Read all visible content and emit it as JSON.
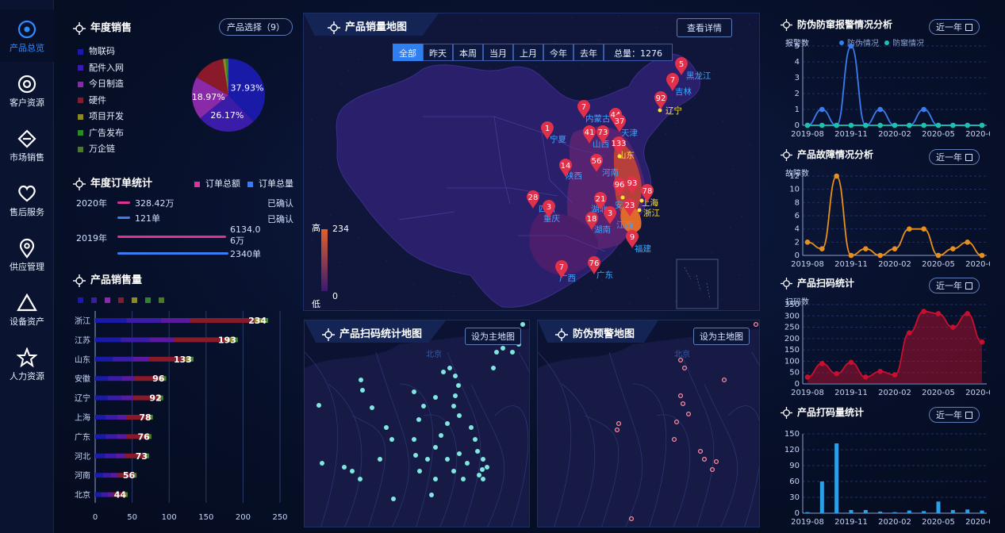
{
  "nav": {
    "items": [
      {
        "label": "产品总览",
        "icon": "target-icon",
        "active": true
      },
      {
        "label": "客户资源",
        "icon": "radio-circle-icon"
      },
      {
        "label": "市场销售",
        "icon": "minus-circle-icon"
      },
      {
        "label": "售后服务",
        "icon": "heart-icon"
      },
      {
        "label": "供应管理",
        "icon": "location-pin-icon"
      },
      {
        "label": "设备资产",
        "icon": "triangle-icon"
      },
      {
        "label": "人力资源",
        "icon": "star-icon"
      }
    ]
  },
  "annual_sales": {
    "title": "年度销售",
    "select_button": "产品选择（9）",
    "legend": [
      {
        "label": "物联码",
        "color": "#1a1aa8"
      },
      {
        "label": "配件入网",
        "color": "#3a1ca8"
      },
      {
        "label": "今日制造",
        "color": "#8a2aa8"
      },
      {
        "label": "硬件",
        "color": "#8a1a2a"
      },
      {
        "label": "项目开发",
        "color": "#8a8a2a"
      },
      {
        "label": "广告发布",
        "color": "#2a8a2a"
      },
      {
        "label": "万企链",
        "color": "#4a7a2a"
      }
    ],
    "chart_data": {
      "type": "pie",
      "slices": [
        {
          "label": "37.93%",
          "value": 37.93,
          "color": "#1a1aa8"
        },
        {
          "label": "26.17%",
          "value": 26.17,
          "color": "#3a1ca8"
        },
        {
          "label": "18.97%",
          "value": 18.97,
          "color": "#8a2aa8"
        },
        {
          "label": "",
          "value": 14.5,
          "color": "#8a1a2a"
        },
        {
          "label": "",
          "value": 1.2,
          "color": "#8a8a2a"
        },
        {
          "label": "",
          "value": 0.8,
          "color": "#2a8a2a"
        },
        {
          "label": "",
          "value": 0.43,
          "color": "#4a7a2a"
        }
      ]
    }
  },
  "order_stats": {
    "title": "年度订单统计",
    "legend_amount": "订单总额",
    "legend_count": "订单总量",
    "y2020": "2020年",
    "y2019": "2019年",
    "amount_2020": "328.42万",
    "count_2020": "121单",
    "amount_2019": "6134.06万",
    "count_2019": "2340单",
    "confirmed_1": "已确认",
    "confirmed_2": "已确认"
  },
  "product_sales": {
    "title": "产品销售量",
    "chart_data": {
      "type": "bar",
      "categories": [
        "浙江",
        "江苏",
        "山东",
        "安徽",
        "辽宁",
        "上海",
        "广东",
        "河北",
        "河南",
        "北京"
      ],
      "values": [
        234,
        193,
        133,
        96,
        92,
        78,
        76,
        73,
        56,
        44
      ],
      "xlim": [
        0,
        250
      ],
      "xticks": [
        "0",
        "50",
        "100",
        "150",
        "200",
        "250"
      ]
    }
  },
  "sales_map": {
    "title": "产品销量地图",
    "detail_button": "查看详情",
    "tabs": [
      "全部",
      "昨天",
      "本周",
      "当月",
      "上月",
      "今年",
      "去年"
    ],
    "total": "总量：1276",
    "legend_high": "高",
    "legend_low": "低",
    "legend_max": "234",
    "legend_min": "0",
    "provinces": [
      "黑龙江",
      "吉林",
      "辽宁",
      "内蒙古",
      "天津",
      "山西",
      "山东",
      "宁夏",
      "陕西",
      "河南",
      "四川",
      "重庆",
      "湖北",
      "湖南",
      "江西",
      "上海",
      "浙江",
      "安徽",
      "福建",
      "广西",
      "广东"
    ],
    "pins": [
      "5",
      "7",
      "92",
      "7",
      "44",
      "37",
      "41",
      "73",
      "133",
      "1",
      "14",
      "56",
      "28",
      "3",
      "96",
      "93",
      "78",
      "21",
      "23",
      "18",
      "3",
      "9",
      "7",
      "76"
    ]
  },
  "scan_map": {
    "title": "产品扫码统计地图",
    "set_main_button": "设为主地图",
    "city_label": "北京"
  },
  "warn_map": {
    "title": "防伪预警地图",
    "set_main_button": "设为主地图",
    "city_label": "北京"
  },
  "right": {
    "chart1": {
      "title": "防伪防窜报警情况分析",
      "range_button": "近一年",
      "ylabel": "报警数",
      "legend": [
        "防伪情况",
        "防窜情况"
      ],
      "chart_data": {
        "type": "line",
        "x": [
          "2019-08",
          "2019-09",
          "2019-10",
          "2019-11",
          "2019-12",
          "2020-01",
          "2020-02",
          "2020-03",
          "2020-04",
          "2020-05",
          "2020-06",
          "2020-07",
          "2020-08"
        ],
        "xticks": [
          "2019-08",
          "2019-11",
          "2020-02",
          "2020-05",
          "2020-08"
        ],
        "ylim": [
          0,
          5
        ],
        "yticks": [
          "0",
          "1",
          "2",
          "3",
          "4",
          "5"
        ],
        "series": [
          {
            "name": "防伪情况",
            "color": "#3b7df0",
            "values": [
              0,
              1,
              0,
              5,
              0,
              1,
              0,
              0,
              1,
              0,
              0,
              0,
              0
            ]
          },
          {
            "name": "防窜情况",
            "color": "#18c3b0",
            "values": [
              0,
              0,
              0,
              0,
              0,
              0,
              0,
              0,
              0,
              0,
              0,
              0,
              0
            ]
          }
        ]
      }
    },
    "chart2": {
      "title": "产品故障情况分析",
      "range_button": "近一年",
      "ylabel": "故障数",
      "chart_data": {
        "type": "line",
        "x": [
          "2019-08",
          "2019-09",
          "2019-10",
          "2019-11",
          "2019-12",
          "2020-01",
          "2020-02",
          "2020-03",
          "2020-04",
          "2020-05",
          "2020-06",
          "2020-07",
          "2020-08"
        ],
        "xticks": [
          "2019-08",
          "2019-11",
          "2020-02",
          "2020-05",
          "2020-08"
        ],
        "ylim": [
          0,
          12
        ],
        "yticks": [
          "0",
          "2",
          "4",
          "6",
          "8",
          "10",
          "12"
        ],
        "series": [
          {
            "name": "",
            "color": "#e8901f",
            "values": [
              2,
              1,
              12,
              0,
              1,
              0,
              1,
              4,
              4,
              0,
              1,
              2,
              0
            ]
          }
        ]
      }
    },
    "chart3": {
      "title": "产品扫码统计",
      "range_button": "近一年",
      "ylabel": "扫码数",
      "chart_data": {
        "type": "area",
        "x": [
          "2019-08",
          "2019-09",
          "2019-10",
          "2019-11",
          "2019-12",
          "2020-01",
          "2020-02",
          "2020-03",
          "2020-04",
          "2020-05",
          "2020-06",
          "2020-07",
          "2020-08"
        ],
        "xticks": [
          "2019-08",
          "2019-11",
          "2020-02",
          "2020-05",
          "2020-08"
        ],
        "ylim": [
          0,
          350
        ],
        "yticks": [
          "0",
          "50",
          "100",
          "150",
          "200",
          "250",
          "300",
          "350"
        ],
        "series": [
          {
            "name": "",
            "color": "#c8102e",
            "values": [
              30,
              90,
              45,
              95,
              30,
              55,
              40,
              225,
              320,
              310,
              250,
              310,
              185
            ]
          }
        ]
      }
    },
    "chart4": {
      "title": "产品打码量统计",
      "range_button": "近一年",
      "chart_data": {
        "type": "bar",
        "x": [
          "2019-08",
          "2019-09",
          "2019-10",
          "2019-11",
          "2019-12",
          "2020-01",
          "2020-02",
          "2020-03",
          "2020-04",
          "2020-05",
          "2020-06",
          "2020-07",
          "2020-08"
        ],
        "xticks": [
          "2019-08",
          "2019-11",
          "2020-02",
          "2020-05",
          "2020-08"
        ],
        "ylim": [
          0,
          150
        ],
        "yticks": [
          "0",
          "30",
          "60",
          "90",
          "120",
          "150"
        ],
        "series": [
          {
            "name": "",
            "color": "#2aa0e8",
            "values": [
              2,
              60,
              132,
              6,
              6,
              3,
              2,
              5,
              4,
              22,
              6,
              7,
              5
            ]
          }
        ]
      }
    }
  }
}
